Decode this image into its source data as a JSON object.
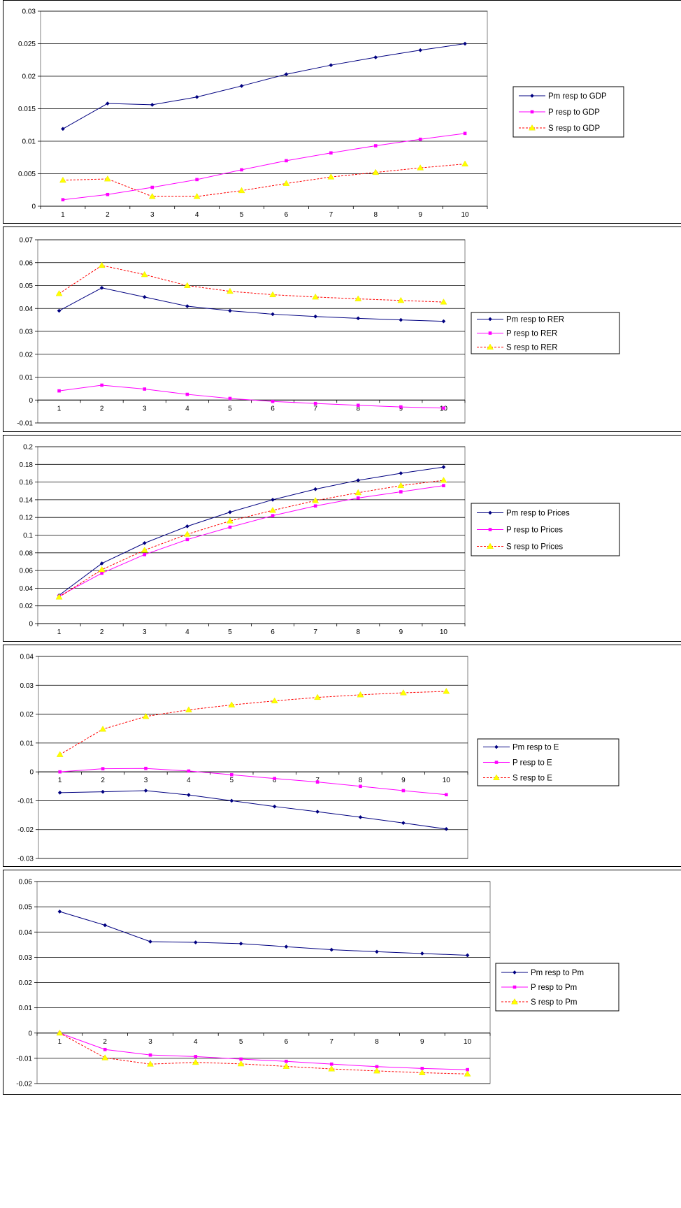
{
  "colors": {
    "Pm": "#000080",
    "P": "#ff00ff",
    "S_line": "#ff0000",
    "S_marker": "#ffff00"
  },
  "chart_data": [
    {
      "type": "line",
      "x": [
        1,
        2,
        3,
        4,
        5,
        6,
        7,
        8,
        9,
        10
      ],
      "ylim": [
        0,
        0.03
      ],
      "yticks": [
        "0",
        "0.005",
        "0.01",
        "0.015",
        "0.02",
        "0.025",
        "0.03"
      ],
      "ytick_values": [
        0,
        0.005,
        0.01,
        0.015,
        0.02,
        0.025,
        0.03
      ],
      "legend_position": "right",
      "series": [
        {
          "name": "Pm resp to GDP",
          "key": "Pm",
          "values": [
            0.0119,
            0.0158,
            0.0156,
            0.0168,
            0.0185,
            0.0203,
            0.0217,
            0.0229,
            0.024,
            0.025
          ]
        },
        {
          "name": "P resp to GDP",
          "key": "P",
          "values": [
            0.001,
            0.0018,
            0.0029,
            0.0041,
            0.0056,
            0.007,
            0.0082,
            0.0093,
            0.0103,
            0.0112
          ]
        },
        {
          "name": "S resp to GDP",
          "key": "S",
          "values": [
            0.004,
            0.0042,
            0.0015,
            0.0015,
            0.0024,
            0.0035,
            0.0045,
            0.0052,
            0.0059,
            0.0065
          ]
        }
      ]
    },
    {
      "type": "line",
      "x": [
        1,
        2,
        3,
        4,
        5,
        6,
        7,
        8,
        9,
        10
      ],
      "ylim": [
        -0.01,
        0.07
      ],
      "yticks": [
        "-0.01",
        "0",
        "0.01",
        "0.02",
        "0.03",
        "0.04",
        "0.05",
        "0.06",
        "0.07"
      ],
      "ytick_values": [
        -0.01,
        0,
        0.01,
        0.02,
        0.03,
        0.04,
        0.05,
        0.06,
        0.07
      ],
      "legend_position": "right",
      "series": [
        {
          "name": "Pm resp to RER",
          "key": "Pm",
          "values": [
            0.039,
            0.049,
            0.045,
            0.041,
            0.039,
            0.0375,
            0.0365,
            0.0357,
            0.035,
            0.0344
          ]
        },
        {
          "name": "P resp to RER",
          "key": "P",
          "values": [
            0.004,
            0.0065,
            0.0048,
            0.0025,
            0.0007,
            -0.0006,
            -0.0015,
            -0.0023,
            -0.003,
            -0.0035
          ]
        },
        {
          "name": "S resp to RER",
          "key": "S",
          "values": [
            0.0465,
            0.0588,
            0.0548,
            0.05,
            0.0475,
            0.046,
            0.045,
            0.0442,
            0.0435,
            0.0428
          ]
        }
      ]
    },
    {
      "type": "line",
      "x": [
        1,
        2,
        3,
        4,
        5,
        6,
        7,
        8,
        9,
        10
      ],
      "ylim": [
        0,
        0.2
      ],
      "yticks": [
        "0",
        "0.02",
        "0.04",
        "0.06",
        "0.08",
        "0.1",
        "0.12",
        "0.14",
        "0.16",
        "0.18",
        "0.2"
      ],
      "ytick_values": [
        0,
        0.02,
        0.04,
        0.06,
        0.08,
        0.1,
        0.12,
        0.14,
        0.16,
        0.18,
        0.2
      ],
      "legend_position": "right",
      "series": [
        {
          "name": "Pm resp to Prices",
          "key": "Pm",
          "values": [
            0.032,
            0.068,
            0.091,
            0.11,
            0.126,
            0.14,
            0.152,
            0.162,
            0.17,
            0.177
          ]
        },
        {
          "name": "P resp to Prices",
          "key": "P",
          "values": [
            0.031,
            0.057,
            0.078,
            0.095,
            0.109,
            0.122,
            0.133,
            0.142,
            0.149,
            0.156
          ]
        },
        {
          "name": "S resp to Prices",
          "key": "S",
          "values": [
            0.03,
            0.061,
            0.083,
            0.101,
            0.116,
            0.128,
            0.139,
            0.148,
            0.156,
            0.162
          ]
        }
      ]
    },
    {
      "type": "line",
      "x": [
        1,
        2,
        3,
        4,
        5,
        6,
        7,
        8,
        9,
        10
      ],
      "ylim": [
        -0.03,
        0.04
      ],
      "yticks": [
        "-0.03",
        "-0.02",
        "-0.01",
        "0",
        "0.01",
        "0.02",
        "0.03",
        "0.04"
      ],
      "ytick_values": [
        -0.03,
        -0.02,
        -0.01,
        0,
        0.01,
        0.02,
        0.03,
        0.04
      ],
      "legend_position": "right",
      "series": [
        {
          "name": "Pm resp to E",
          "key": "Pm",
          "values": [
            -0.0072,
            -0.0069,
            -0.0065,
            -0.008,
            -0.01,
            -0.012,
            -0.0138,
            -0.0157,
            -0.0177,
            -0.0198
          ]
        },
        {
          "name": "P resp to E",
          "key": "P",
          "values": [
            0.0,
            0.0011,
            0.0012,
            0.0003,
            -0.001,
            -0.0023,
            -0.0035,
            -0.005,
            -0.0065,
            -0.0079
          ]
        },
        {
          "name": "S resp to E",
          "key": "S",
          "values": [
            0.006,
            0.0148,
            0.0192,
            0.0215,
            0.0232,
            0.0246,
            0.0258,
            0.0267,
            0.0274,
            0.0279
          ]
        }
      ]
    },
    {
      "type": "line",
      "x": [
        1,
        2,
        3,
        4,
        5,
        6,
        7,
        8,
        9,
        10
      ],
      "ylim": [
        -0.02,
        0.06
      ],
      "yticks": [
        "-0.02",
        "-0.01",
        "0",
        "0.01",
        "0.02",
        "0.03",
        "0.04",
        "0.05",
        "0.06"
      ],
      "ytick_values": [
        -0.02,
        -0.01,
        0,
        0.01,
        0.02,
        0.03,
        0.04,
        0.05,
        0.06
      ],
      "legend_position": "right",
      "series": [
        {
          "name": "Pm resp to Pm",
          "key": "Pm",
          "values": [
            0.0481,
            0.0427,
            0.0362,
            0.0359,
            0.0354,
            0.0342,
            0.033,
            0.0322,
            0.0315,
            0.0308
          ]
        },
        {
          "name": "P resp to Pm",
          "key": "P",
          "values": [
            0.0,
            -0.0065,
            -0.0087,
            -0.0093,
            -0.0103,
            -0.0112,
            -0.0123,
            -0.0133,
            -0.014,
            -0.0145
          ]
        },
        {
          "name": "S resp to Pm",
          "key": "S",
          "values": [
            0.0,
            -0.0098,
            -0.0123,
            -0.0116,
            -0.0122,
            -0.0132,
            -0.0142,
            -0.015,
            -0.0157,
            -0.0162
          ]
        }
      ]
    }
  ]
}
